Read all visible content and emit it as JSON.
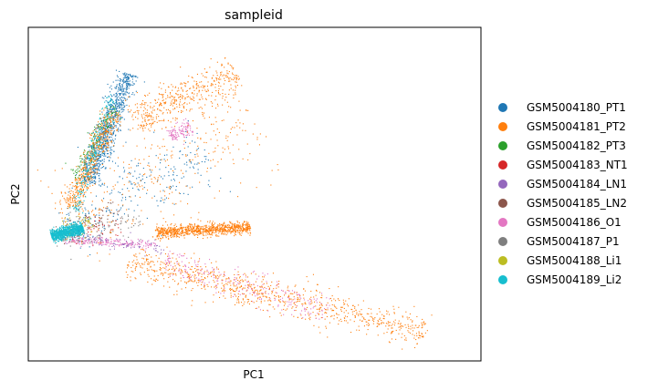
{
  "chart_data": {
    "type": "scatter",
    "title": "sampleid",
    "xlabel": "PC1",
    "ylabel": "PC2",
    "xlim": [
      0,
      10
    ],
    "ylim": [
      0,
      8
    ],
    "grid": false,
    "legend_placement": "right",
    "series": [
      {
        "name": "GSM5004180_PT1",
        "color": "#1f77b4"
      },
      {
        "name": "GSM5004181_PT2",
        "color": "#ff7f0e"
      },
      {
        "name": "GSM5004182_PT3",
        "color": "#2ca02c"
      },
      {
        "name": "GSM5004183_NT1",
        "color": "#d62728"
      },
      {
        "name": "GSM5004184_LN1",
        "color": "#9467bd"
      },
      {
        "name": "GSM5004185_LN2",
        "color": "#8c564b"
      },
      {
        "name": "GSM5004186_O1",
        "color": "#e377c2"
      },
      {
        "name": "GSM5004187_P1",
        "color": "#7f7f7f"
      },
      {
        "name": "GSM5004188_Li1",
        "color": "#bcbd22"
      },
      {
        "name": "GSM5004189_Li2",
        "color": "#17becf"
      }
    ],
    "clusters": [
      {
        "series": "GSM5004180_PT1",
        "n": 900,
        "from": [
          1.3,
          4.3
        ],
        "to": [
          2.2,
          6.9
        ],
        "width": 0.25
      },
      {
        "series": "GSM5004182_PT3",
        "n": 160,
        "from": [
          1.0,
          4.4
        ],
        "to": [
          1.9,
          6.1
        ],
        "width": 0.18
      },
      {
        "series": "GSM5004181_PT2",
        "n": 500,
        "from": [
          0.9,
          3.7
        ],
        "to": [
          1.9,
          6.0
        ],
        "width": 0.22
      },
      {
        "series": "GSM5004181_PT2",
        "n": 900,
        "from": [
          2.8,
          3.1
        ],
        "to": [
          4.9,
          3.2
        ],
        "width": 0.14
      },
      {
        "series": "GSM5004181_PT2",
        "n": 450,
        "from": [
          2.3,
          5.8
        ],
        "to": [
          4.6,
          6.9
        ],
        "width": 0.45
      },
      {
        "series": "GSM5004186_O1",
        "n": 120,
        "from": [
          3.1,
          5.4
        ],
        "to": [
          3.6,
          5.6
        ],
        "width": 0.2
      },
      {
        "series": "GSM5004181_PT2",
        "n": 900,
        "from": [
          2.2,
          2.4
        ],
        "to": [
          8.8,
          0.7
        ],
        "width": 0.4
      },
      {
        "series": "GSM5004186_O1",
        "n": 250,
        "from": [
          3.0,
          2.4
        ],
        "to": [
          6.6,
          1.2
        ],
        "width": 0.35
      },
      {
        "series": "GSM5004186_O1",
        "n": 200,
        "from": [
          0.8,
          2.9
        ],
        "to": [
          2.8,
          2.8
        ],
        "width": 0.1
      },
      {
        "series": "GSM5004184_LN1",
        "n": 100,
        "from": [
          0.8,
          3.0
        ],
        "to": [
          3.0,
          2.7
        ],
        "width": 0.15
      },
      {
        "series": "GSM5004187_P1",
        "n": 120,
        "from": [
          0.5,
          3.0
        ],
        "to": [
          2.5,
          3.4
        ],
        "width": 0.4
      },
      {
        "series": "GSM5004185_LN2",
        "n": 80,
        "from": [
          0.7,
          3.0
        ],
        "to": [
          2.0,
          3.6
        ],
        "width": 0.3
      },
      {
        "series": "GSM5004183_NT1",
        "n": 40,
        "from": [
          0.8,
          3.0
        ],
        "to": [
          2.0,
          3.3
        ],
        "width": 0.3
      },
      {
        "series": "GSM5004188_Li1",
        "n": 80,
        "from": [
          0.6,
          3.0
        ],
        "to": [
          1.4,
          3.4
        ],
        "width": 0.25
      },
      {
        "series": "GSM5004180_PT1",
        "n": 250,
        "from": [
          0.8,
          3.3
        ],
        "to": [
          4.0,
          5.0
        ],
        "width": 0.9
      },
      {
        "series": "GSM5004181_PT2",
        "n": 350,
        "from": [
          0.8,
          3.3
        ],
        "to": [
          5.0,
          5.8
        ],
        "width": 1.2
      },
      {
        "series": "GSM5004189_Li2",
        "n": 1000,
        "from": [
          0.5,
          3.0
        ],
        "to": [
          1.2,
          3.2
        ],
        "width": 0.14
      },
      {
        "series": "GSM5004189_Li2",
        "n": 200,
        "from": [
          1.0,
          3.6
        ],
        "to": [
          1.9,
          6.4
        ],
        "width": 0.15
      }
    ]
  }
}
